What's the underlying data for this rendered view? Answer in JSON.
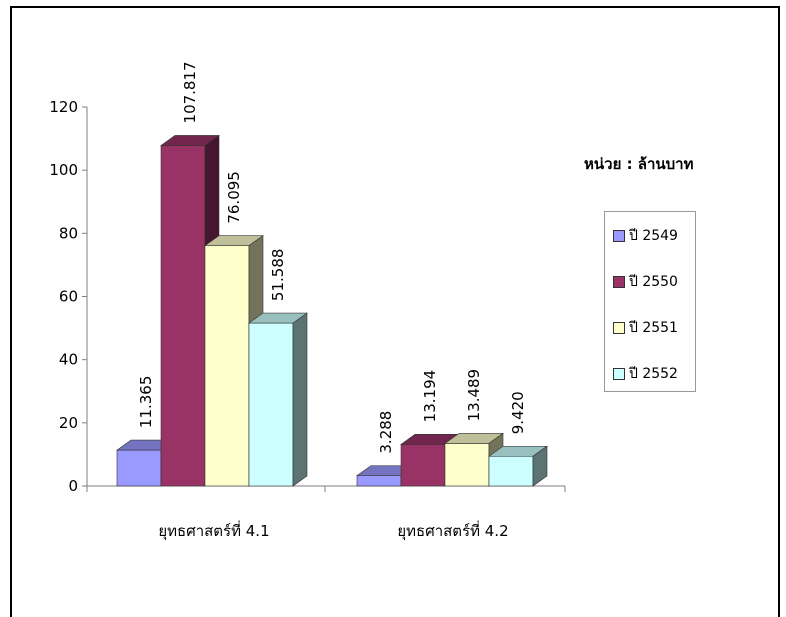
{
  "chart_data": {
    "type": "bar",
    "style": "3d-clustered-column",
    "categories": [
      "ยุทธศาสตร์ที่ 4.1",
      "ยุทธศาสตร์ที่ 4.2"
    ],
    "series": [
      {
        "name": "ปี 2549",
        "values": [
          11.365,
          3.288
        ],
        "labels": [
          "11.365",
          "3.288"
        ],
        "color": "#9999ff"
      },
      {
        "name": "ปี 2550",
        "values": [
          107.817,
          13.194
        ],
        "labels": [
          "107.817",
          "13.194"
        ],
        "color": "#993366"
      },
      {
        "name": "ปี 2551",
        "values": [
          76.095,
          13.489
        ],
        "labels": [
          "76.095",
          "13.489"
        ],
        "color": "#ffffcc"
      },
      {
        "name": "ปี 2552",
        "values": [
          51.588,
          9.42
        ],
        "labels": [
          "51.588",
          "9.420"
        ],
        "color": "#ccffff"
      }
    ],
    "ylim": [
      0,
      120
    ],
    "yticks": [
      0,
      20,
      40,
      60,
      80,
      100,
      120
    ],
    "unit_label": "หน่วย : ล้านบาท",
    "legend_position": "right",
    "grid": false
  }
}
